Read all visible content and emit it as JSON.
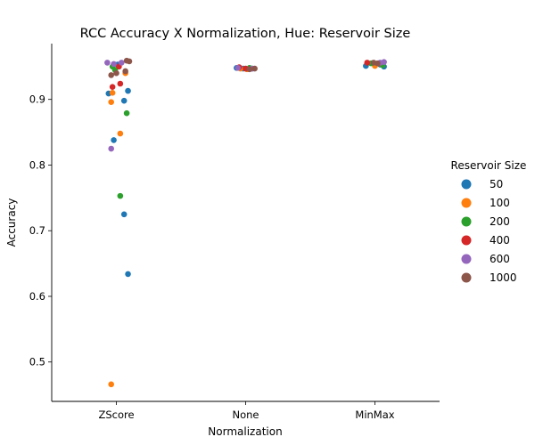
{
  "chart_data": {
    "type": "scatter",
    "subtype": "strip",
    "title": "RCC Accuracy X Normalization, Hue: Reservoir Size",
    "xlabel": "Normalization",
    "ylabel": "Accuracy",
    "categories": [
      "ZScore",
      "None",
      "MinMax"
    ],
    "ylim": [
      0.44,
      0.985
    ],
    "yticks": [
      0.5,
      0.6,
      0.7,
      0.8,
      0.9
    ],
    "ytick_labels": [
      "0.5",
      "0.6",
      "0.7",
      "0.8",
      "0.9"
    ],
    "grid": false,
    "legend": {
      "title": "Reservoir Size",
      "placement": "right"
    },
    "series": [
      {
        "name": "50",
        "color": "#1f77b4",
        "points": [
          {
            "category": "ZScore",
            "jitter": -0.06,
            "y": 0.909
          },
          {
            "category": "ZScore",
            "jitter": 0.09,
            "y": 0.913
          },
          {
            "category": "ZScore",
            "jitter": 0.06,
            "y": 0.898
          },
          {
            "category": "ZScore",
            "jitter": -0.02,
            "y": 0.838
          },
          {
            "category": "ZScore",
            "jitter": 0.06,
            "y": 0.725
          },
          {
            "category": "ZScore",
            "jitter": 0.09,
            "y": 0.634
          },
          {
            "category": "ZScore",
            "jitter": 0.01,
            "y": 0.953
          },
          {
            "category": "None",
            "jitter": -0.07,
            "y": 0.948
          },
          {
            "category": "None",
            "jitter": -0.02,
            "y": 0.947
          },
          {
            "category": "None",
            "jitter": 0.05,
            "y": 0.947
          },
          {
            "category": "MinMax",
            "jitter": -0.07,
            "y": 0.951
          },
          {
            "category": "MinMax",
            "jitter": 0.07,
            "y": 0.95
          },
          {
            "category": "MinMax",
            "jitter": 0.04,
            "y": 0.953
          }
        ]
      },
      {
        "name": "100",
        "color": "#ff7f0e",
        "points": [
          {
            "category": "ZScore",
            "jitter": -0.04,
            "y": 0.896
          },
          {
            "category": "ZScore",
            "jitter": -0.03,
            "y": 0.91
          },
          {
            "category": "ZScore",
            "jitter": 0.03,
            "y": 0.848
          },
          {
            "category": "ZScore",
            "jitter": -0.04,
            "y": 0.466
          },
          {
            "category": "ZScore",
            "jitter": 0.07,
            "y": 0.94
          },
          {
            "category": "None",
            "jitter": -0.04,
            "y": 0.947
          },
          {
            "category": "None",
            "jitter": 0.01,
            "y": 0.946
          },
          {
            "category": "MinMax",
            "jitter": 0.0,
            "y": 0.951
          },
          {
            "category": "MinMax",
            "jitter": 0.05,
            "y": 0.954
          }
        ]
      },
      {
        "name": "200",
        "color": "#2ca02c",
        "points": [
          {
            "category": "ZScore",
            "jitter": -0.03,
            "y": 0.95
          },
          {
            "category": "ZScore",
            "jitter": 0.08,
            "y": 0.879
          },
          {
            "category": "ZScore",
            "jitter": 0.03,
            "y": 0.753
          },
          {
            "category": "ZScore",
            "jitter": -0.01,
            "y": 0.945
          },
          {
            "category": "None",
            "jitter": 0.03,
            "y": 0.948
          },
          {
            "category": "MinMax",
            "jitter": 0.06,
            "y": 0.952
          },
          {
            "category": "MinMax",
            "jitter": -0.03,
            "y": 0.955
          }
        ]
      },
      {
        "name": "400",
        "color": "#d62728",
        "points": [
          {
            "category": "ZScore",
            "jitter": -0.03,
            "y": 0.919
          },
          {
            "category": "ZScore",
            "jitter": 0.03,
            "y": 0.924
          },
          {
            "category": "ZScore",
            "jitter": 0.02,
            "y": 0.95
          },
          {
            "category": "None",
            "jitter": -0.05,
            "y": 0.949
          },
          {
            "category": "None",
            "jitter": 0.0,
            "y": 0.947
          },
          {
            "category": "MinMax",
            "jitter": -0.06,
            "y": 0.956
          },
          {
            "category": "MinMax",
            "jitter": 0.03,
            "y": 0.955
          }
        ]
      },
      {
        "name": "600",
        "color": "#9467bd",
        "points": [
          {
            "category": "ZScore",
            "jitter": -0.04,
            "y": 0.825
          },
          {
            "category": "ZScore",
            "jitter": -0.07,
            "y": 0.956
          },
          {
            "category": "ZScore",
            "jitter": 0.04,
            "y": 0.956
          },
          {
            "category": "ZScore",
            "jitter": -0.02,
            "y": 0.954
          },
          {
            "category": "None",
            "jitter": -0.06,
            "y": 0.948
          },
          {
            "category": "None",
            "jitter": 0.05,
            "y": 0.947
          },
          {
            "category": "MinMax",
            "jitter": 0.04,
            "y": 0.956
          },
          {
            "category": "MinMax",
            "jitter": 0.07,
            "y": 0.957
          }
        ]
      },
      {
        "name": "1000",
        "color": "#8c564b",
        "points": [
          {
            "category": "ZScore",
            "jitter": 0.08,
            "y": 0.959
          },
          {
            "category": "ZScore",
            "jitter": 0.1,
            "y": 0.958
          },
          {
            "category": "ZScore",
            "jitter": -0.04,
            "y": 0.937
          },
          {
            "category": "ZScore",
            "jitter": 0.0,
            "y": 0.94
          },
          {
            "category": "ZScore",
            "jitter": 0.07,
            "y": 0.943
          },
          {
            "category": "None",
            "jitter": 0.03,
            "y": 0.946
          },
          {
            "category": "None",
            "jitter": 0.07,
            "y": 0.947
          },
          {
            "category": "MinMax",
            "jitter": -0.01,
            "y": 0.956
          },
          {
            "category": "MinMax",
            "jitter": 0.02,
            "y": 0.955
          }
        ]
      }
    ]
  }
}
